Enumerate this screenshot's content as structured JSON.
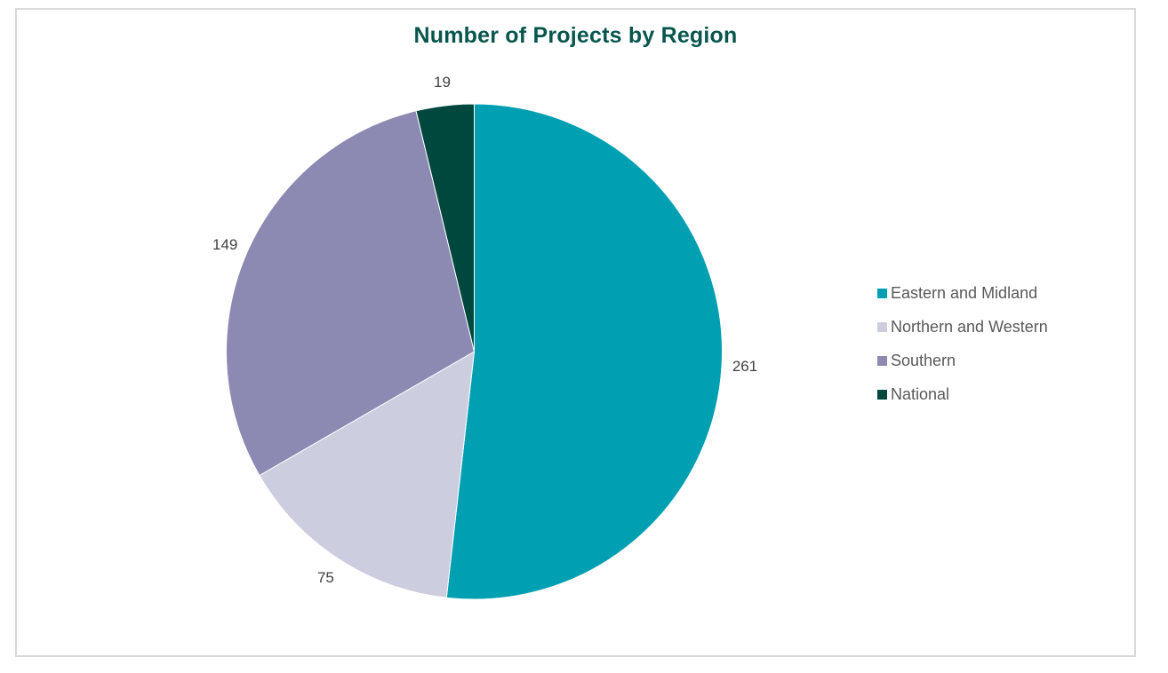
{
  "chart_data": {
    "type": "pie",
    "title": "Number of Projects by Region",
    "categories": [
      "Eastern and Midland",
      "Northern and Western",
      "Southern",
      "National"
    ],
    "values": [
      261,
      75,
      149,
      19
    ],
    "slice_colors": [
      "#009FB2",
      "#CDCDE0",
      "#8C8AB2",
      "#00483E"
    ],
    "start_angle_deg": 0,
    "direction": "clockwise",
    "data_labels": "outside-end",
    "legend_position": "right",
    "legend_entries": [
      "Eastern and Midland",
      "Northern and Western",
      "Southern",
      "National"
    ]
  },
  "style_colors": {
    "title_color": "#07564D",
    "data_label_color": "#404040",
    "legend_text_color": "#595959",
    "frame_border_color": "#D9D9D9",
    "slice_border_color": "#FFFFFF",
    "background": "#FFFFFF"
  }
}
